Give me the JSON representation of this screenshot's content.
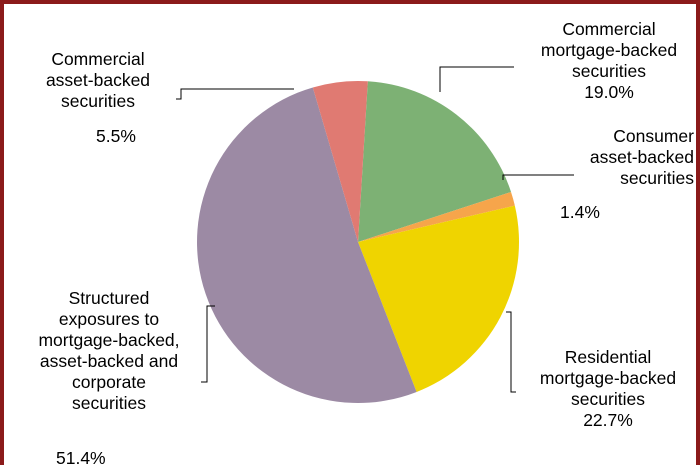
{
  "chart_data": {
    "type": "pie",
    "slices": [
      {
        "label": "Commercial mortgage-backed securities",
        "lines": [
          "Commercial",
          "mortgage-backed",
          "securities"
        ],
        "value": 19.0,
        "pct_text": "19.0%",
        "color": "#7db174"
      },
      {
        "label": "Consumer asset-backed securities",
        "lines": [
          "Consumer",
          "asset-backed",
          "securities"
        ],
        "value": 1.4,
        "pct_text": "1.4%",
        "color": "#f6a54b"
      },
      {
        "label": "Residential mortgage-backed securities",
        "lines": [
          "Residential",
          "mortgage-backed",
          "securities"
        ],
        "value": 22.7,
        "pct_text": "22.7%",
        "color": "#efd400"
      },
      {
        "label": "Structured exposures to mortgage-backed, asset-backed and corporate securities",
        "lines": [
          "Structured",
          "exposures to",
          "mortgage-backed,",
          "asset-backed and",
          "corporate",
          "securities"
        ],
        "value": 51.4,
        "pct_text": "51.4%",
        "color": "#9c8aa4"
      },
      {
        "label": "Commercial asset-backed securities",
        "lines": [
          "Commercial",
          "asset-backed",
          "securities"
        ],
        "value": 5.5,
        "pct_text": "5.5%",
        "color": "#e07a72"
      }
    ]
  }
}
